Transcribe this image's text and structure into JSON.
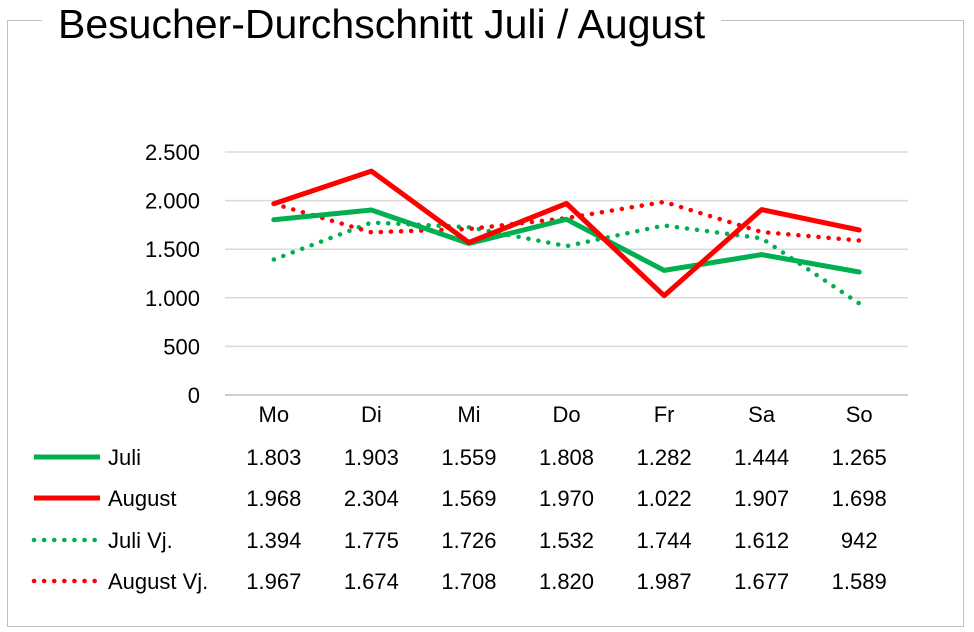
{
  "chart_data": {
    "type": "line",
    "title": "Besucher-Durchschnitt Juli / August",
    "categories": [
      "Mo",
      "Di",
      "Mi",
      "Do",
      "Fr",
      "Sa",
      "So"
    ],
    "ylim": [
      0,
      2500
    ],
    "yticks": [
      0,
      500,
      1000,
      1500,
      2000,
      2500
    ],
    "ytick_labels": [
      "0",
      "500",
      "1.000",
      "1.500",
      "2.000",
      "2.500"
    ],
    "grid": true,
    "legend": "data-table-below",
    "series": [
      {
        "name": "Juli",
        "color": "#00b050",
        "style": "solid",
        "values": [
          1803,
          1903,
          1559,
          1808,
          1282,
          1444,
          1265
        ],
        "labels": [
          "1.803",
          "1.903",
          "1.559",
          "1.808",
          "1.282",
          "1.444",
          "1.265"
        ]
      },
      {
        "name": "August",
        "color": "#ff0000",
        "style": "solid",
        "values": [
          1968,
          2304,
          1569,
          1970,
          1022,
          1907,
          1698
        ],
        "labels": [
          "1.968",
          "2.304",
          "1.569",
          "1.970",
          "1.022",
          "1.907",
          "1.698"
        ]
      },
      {
        "name": "Juli Vj.",
        "color": "#00b050",
        "style": "dotted",
        "values": [
          1394,
          1775,
          1726,
          1532,
          1744,
          1612,
          942
        ],
        "labels": [
          "1.394",
          "1.775",
          "1.726",
          "1.532",
          "1.744",
          "1.612",
          "942"
        ]
      },
      {
        "name": "August Vj.",
        "color": "#ff0000",
        "style": "dotted",
        "values": [
          1967,
          1674,
          1708,
          1820,
          1987,
          1677,
          1589
        ],
        "labels": [
          "1.967",
          "1.674",
          "1.708",
          "1.820",
          "1.987",
          "1.677",
          "1.589"
        ]
      }
    ]
  }
}
